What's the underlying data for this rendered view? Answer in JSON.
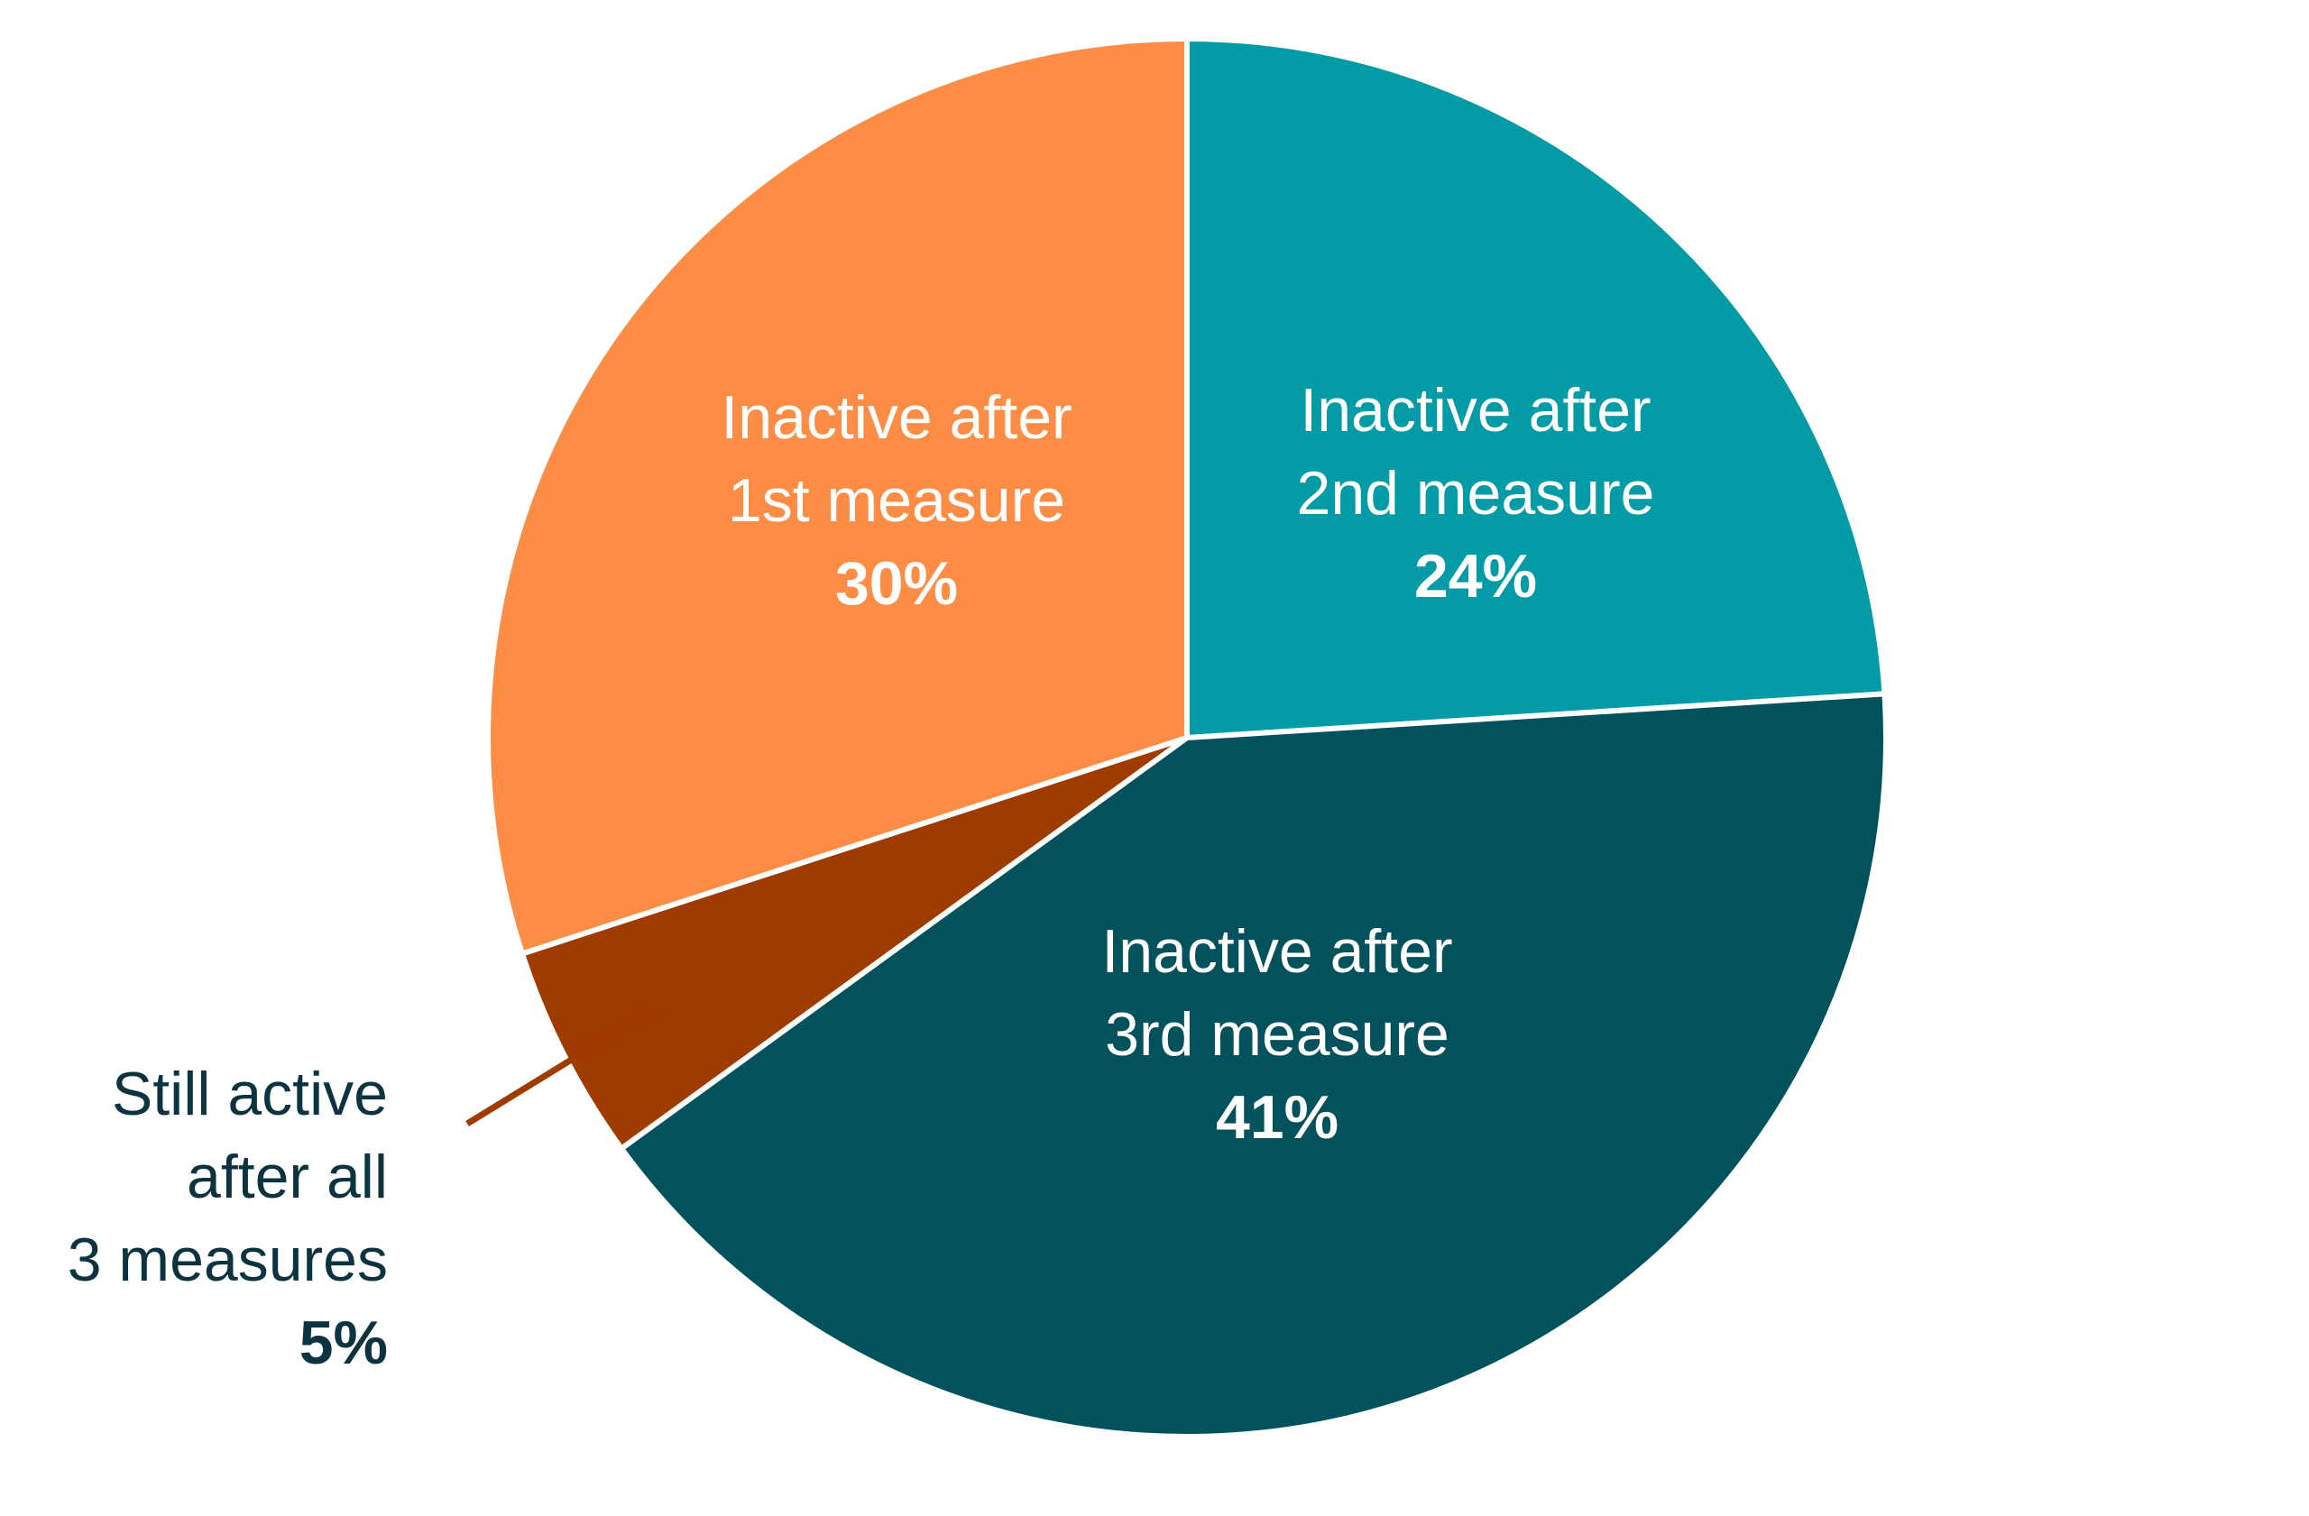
{
  "chart_data": {
    "type": "pie",
    "slices": [
      {
        "lines": [
          "Inactive after",
          "2nd measure"
        ],
        "value_label": "24%",
        "value": 24,
        "color": "#029ba6",
        "text_color": "#ffffff"
      },
      {
        "lines": [
          "Inactive after",
          "3rd measure"
        ],
        "value_label": "41%",
        "value": 41,
        "color": "#02525e",
        "text_color": "#ffffff"
      },
      {
        "lines": [
          "Still active",
          "after all",
          "3 measures"
        ],
        "value_label": "5%",
        "value": 5,
        "color": "#a03b00",
        "text_color": "#0c3440"
      },
      {
        "lines": [
          "Inactive after",
          "1st measure"
        ],
        "value_label": "30%",
        "value": 30,
        "color": "#fd8c45",
        "text_color": "#ffffff"
      }
    ],
    "start": "12 o'clock",
    "direction": "clockwise"
  }
}
